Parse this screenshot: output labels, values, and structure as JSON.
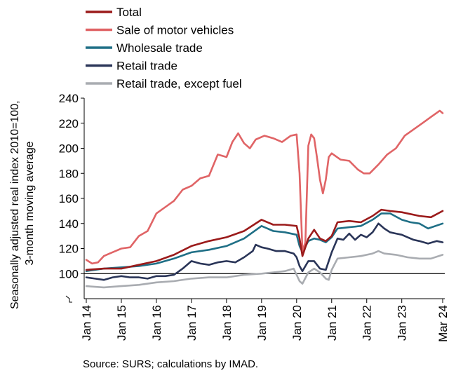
{
  "chart_data": {
    "type": "line",
    "ylabel": "Seasonally adjusted real index 2010=100, 3-month moving average",
    "ylabel_lines": [
      "Seasonally adjusted real index 2010=100,",
      "3-month moving average"
    ],
    "ylim": [
      80,
      240
    ],
    "yticks": [
      100,
      120,
      140,
      160,
      180,
      200,
      220,
      240
    ],
    "xlim": [
      "Jan 14",
      "Mar 24"
    ],
    "x_tick_labels": [
      "Jan 14",
      "Jan 15",
      "Jan 16",
      "Jan 17",
      "Jan 18",
      "Jan 19",
      "Jan 20",
      "Jan 21",
      "Jan 22",
      "Jan 23",
      "Mar 24"
    ],
    "x_tick_months": [
      0,
      12,
      24,
      36,
      48,
      60,
      72,
      84,
      96,
      108,
      122
    ],
    "grid": false,
    "reference_line_y": 100,
    "legend_position": "top-left",
    "source": "Source: SURS; calculations by IMAD.",
    "series": [
      {
        "name": "Total",
        "color": "#9b1b1b",
        "points": [
          [
            0,
            103
          ],
          [
            6,
            104
          ],
          [
            12,
            104
          ],
          [
            18,
            107
          ],
          [
            24,
            110
          ],
          [
            30,
            115
          ],
          [
            36,
            122
          ],
          [
            42,
            126
          ],
          [
            48,
            129
          ],
          [
            54,
            134
          ],
          [
            60,
            143
          ],
          [
            64,
            139
          ],
          [
            68,
            139
          ],
          [
            72,
            138
          ],
          [
            73,
            128
          ],
          [
            74,
            114
          ],
          [
            76,
            128
          ],
          [
            78,
            135
          ],
          [
            80,
            128
          ],
          [
            82,
            126
          ],
          [
            84,
            130
          ],
          [
            86,
            141
          ],
          [
            90,
            142
          ],
          [
            94,
            141
          ],
          [
            98,
            146
          ],
          [
            101,
            151
          ],
          [
            104,
            150
          ],
          [
            108,
            149
          ],
          [
            114,
            146
          ],
          [
            118,
            145
          ],
          [
            122,
            150
          ]
        ]
      },
      {
        "name": "Sale of motor vehicles",
        "color": "#e06466",
        "points": [
          [
            0,
            111
          ],
          [
            2,
            108
          ],
          [
            4,
            109
          ],
          [
            6,
            114
          ],
          [
            8,
            116
          ],
          [
            10,
            118
          ],
          [
            12,
            120
          ],
          [
            15,
            121
          ],
          [
            18,
            130
          ],
          [
            21,
            134
          ],
          [
            24,
            148
          ],
          [
            27,
            153
          ],
          [
            30,
            158
          ],
          [
            33,
            167
          ],
          [
            36,
            170
          ],
          [
            39,
            176
          ],
          [
            42,
            178
          ],
          [
            45,
            195
          ],
          [
            48,
            193
          ],
          [
            50,
            205
          ],
          [
            52,
            212
          ],
          [
            54,
            204
          ],
          [
            56,
            200
          ],
          [
            58,
            207
          ],
          [
            61,
            210
          ],
          [
            64,
            208
          ],
          [
            67,
            205
          ],
          [
            70,
            210
          ],
          [
            72,
            211
          ],
          [
            73,
            180
          ],
          [
            74,
            118
          ],
          [
            75,
            125
          ],
          [
            76,
            202
          ],
          [
            77,
            211
          ],
          [
            78,
            208
          ],
          [
            79,
            192
          ],
          [
            80,
            175
          ],
          [
            81,
            164
          ],
          [
            82,
            175
          ],
          [
            83,
            193
          ],
          [
            84,
            196
          ],
          [
            87,
            191
          ],
          [
            90,
            190
          ],
          [
            93,
            183
          ],
          [
            95,
            180
          ],
          [
            97,
            180
          ],
          [
            100,
            187
          ],
          [
            103,
            195
          ],
          [
            106,
            200
          ],
          [
            109,
            210
          ],
          [
            112,
            215
          ],
          [
            115,
            220
          ],
          [
            118,
            225
          ],
          [
            121,
            230
          ],
          [
            122,
            228
          ]
        ]
      },
      {
        "name": "Wholesale trade",
        "color": "#1f6f86",
        "points": [
          [
            0,
            102
          ],
          [
            6,
            104
          ],
          [
            12,
            105
          ],
          [
            18,
            106
          ],
          [
            24,
            108
          ],
          [
            30,
            112
          ],
          [
            36,
            117
          ],
          [
            42,
            119
          ],
          [
            48,
            122
          ],
          [
            54,
            128
          ],
          [
            60,
            138
          ],
          [
            64,
            134
          ],
          [
            68,
            133
          ],
          [
            72,
            131
          ],
          [
            73,
            122
          ],
          [
            74,
            117
          ],
          [
            76,
            126
          ],
          [
            78,
            128
          ],
          [
            80,
            127
          ],
          [
            82,
            125
          ],
          [
            84,
            129
          ],
          [
            86,
            136
          ],
          [
            90,
            137
          ],
          [
            94,
            138
          ],
          [
            98,
            143
          ],
          [
            101,
            148
          ],
          [
            104,
            148
          ],
          [
            108,
            143
          ],
          [
            111,
            141
          ],
          [
            114,
            140
          ],
          [
            117,
            136
          ],
          [
            122,
            140
          ]
        ]
      },
      {
        "name": "Retail trade",
        "color": "#2a3558",
        "points": [
          [
            0,
            97
          ],
          [
            3,
            96
          ],
          [
            6,
            95
          ],
          [
            9,
            97
          ],
          [
            12,
            98
          ],
          [
            15,
            97
          ],
          [
            18,
            97
          ],
          [
            21,
            96
          ],
          [
            24,
            98
          ],
          [
            27,
            98
          ],
          [
            30,
            99
          ],
          [
            33,
            104
          ],
          [
            36,
            110
          ],
          [
            39,
            108
          ],
          [
            42,
            107
          ],
          [
            45,
            109
          ],
          [
            48,
            110
          ],
          [
            51,
            109
          ],
          [
            54,
            113
          ],
          [
            57,
            118
          ],
          [
            58,
            123
          ],
          [
            60,
            121
          ],
          [
            62,
            120
          ],
          [
            65,
            118
          ],
          [
            68,
            118
          ],
          [
            71,
            116
          ],
          [
            72,
            113
          ],
          [
            73,
            106
          ],
          [
            74,
            102
          ],
          [
            75,
            106
          ],
          [
            76,
            110
          ],
          [
            78,
            110
          ],
          [
            80,
            104
          ],
          [
            82,
            103
          ],
          [
            84,
            117
          ],
          [
            86,
            128
          ],
          [
            88,
            127
          ],
          [
            90,
            132
          ],
          [
            92,
            127
          ],
          [
            94,
            131
          ],
          [
            96,
            129
          ],
          [
            98,
            133
          ],
          [
            100,
            140
          ],
          [
            102,
            136
          ],
          [
            104,
            133
          ],
          [
            106,
            132
          ],
          [
            108,
            131
          ],
          [
            110,
            129
          ],
          [
            112,
            127
          ],
          [
            114,
            126
          ],
          [
            117,
            124
          ],
          [
            120,
            126
          ],
          [
            122,
            125
          ]
        ]
      },
      {
        "name": "Retail trade, except fuel",
        "color": "#a9acb1",
        "points": [
          [
            0,
            90
          ],
          [
            6,
            89
          ],
          [
            12,
            90
          ],
          [
            18,
            91
          ],
          [
            24,
            93
          ],
          [
            30,
            94
          ],
          [
            36,
            96
          ],
          [
            42,
            97
          ],
          [
            48,
            97
          ],
          [
            54,
            99
          ],
          [
            60,
            100
          ],
          [
            64,
            101
          ],
          [
            68,
            102
          ],
          [
            71,
            104
          ],
          [
            72,
            99
          ],
          [
            73,
            94
          ],
          [
            74,
            92
          ],
          [
            76,
            101
          ],
          [
            78,
            104
          ],
          [
            80,
            101
          ],
          [
            82,
            96
          ],
          [
            83,
            95
          ],
          [
            84,
            103
          ],
          [
            86,
            112
          ],
          [
            90,
            113
          ],
          [
            94,
            114
          ],
          [
            98,
            116
          ],
          [
            100,
            118
          ],
          [
            102,
            116
          ],
          [
            106,
            115
          ],
          [
            110,
            113
          ],
          [
            114,
            112
          ],
          [
            118,
            112
          ],
          [
            122,
            115
          ]
        ]
      }
    ]
  }
}
